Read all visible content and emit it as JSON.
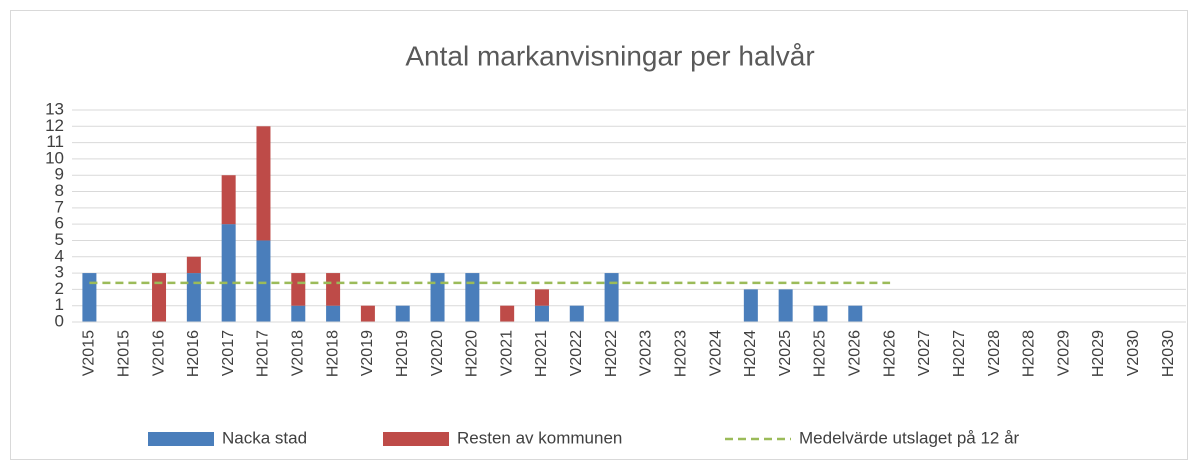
{
  "chart_data": {
    "type": "bar",
    "stacked": true,
    "title": "Antal markanvisningar per halvår",
    "categories": [
      "V2015",
      "H2015",
      "V2016",
      "H2016",
      "V2017",
      "H2017",
      "V2018",
      "H2018",
      "V2019",
      "H2019",
      "V2020",
      "H2020",
      "V2021",
      "H2021",
      "V2022",
      "H2022",
      "V2023",
      "H2023",
      "V2024",
      "H2024",
      "V2025",
      "H2025",
      "V2026",
      "H2026",
      "V2027",
      "H2027",
      "V2028",
      "H2028",
      "V2029",
      "H2029",
      "V2030",
      "H2030"
    ],
    "series": [
      {
        "name": "Nacka stad",
        "color": "#4a7ebb",
        "values": [
          3,
          0,
          0,
          3,
          6,
          5,
          1,
          1,
          0,
          1,
          3,
          3,
          0,
          1,
          1,
          3,
          0,
          0,
          0,
          2,
          2,
          1,
          1,
          0,
          0,
          0,
          0,
          0,
          0,
          0,
          0,
          0
        ]
      },
      {
        "name": "Resten av kommunen",
        "color": "#be4b48",
        "values": [
          0,
          0,
          3,
          1,
          3,
          7,
          2,
          2,
          1,
          0,
          0,
          0,
          1,
          1,
          0,
          0,
          0,
          0,
          0,
          0,
          0,
          0,
          0,
          0,
          0,
          0,
          0,
          0,
          0,
          0,
          0,
          0
        ]
      },
      {
        "name": "Medelvärde utslaget på 12 år",
        "color": "#9bbb59",
        "kind": "dashed-line",
        "values": [
          2.4,
          2.4,
          2.4,
          2.4,
          2.4,
          2.4,
          2.4,
          2.4,
          2.4,
          2.4,
          2.4,
          2.4,
          2.4,
          2.4,
          2.4,
          2.4,
          2.4,
          2.4,
          2.4,
          2.4,
          2.4,
          2.4,
          2.4,
          2.4,
          null,
          null,
          null,
          null,
          null,
          null,
          null,
          null
        ]
      }
    ],
    "ylim": [
      0,
      13
    ],
    "yticks": [
      0,
      1,
      2,
      3,
      4,
      5,
      6,
      7,
      8,
      9,
      10,
      11,
      12,
      13
    ],
    "grid": true,
    "legend": "bottom"
  }
}
